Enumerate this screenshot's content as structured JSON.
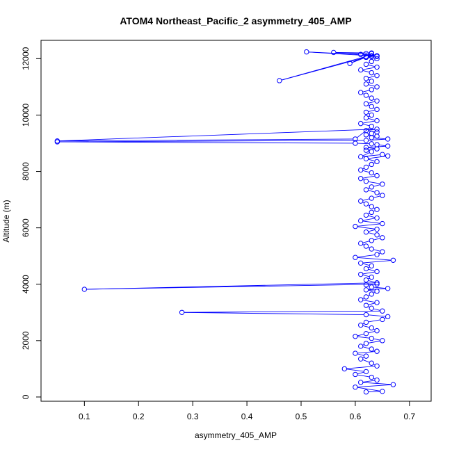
{
  "chart_data": {
    "type": "scatter",
    "title": "ATOM4 Northeast_Pacific_2 asymmetry_405_AMP",
    "xlabel": "asymmetry_405_AMP",
    "ylabel": "Altitude (m)",
    "xlim": [
      0.02,
      0.74
    ],
    "ylim": [
      -150,
      12650
    ],
    "xticks": [
      0.1,
      0.2,
      0.3,
      0.4,
      0.5,
      0.6,
      0.7
    ],
    "yticks": [
      0,
      2000,
      4000,
      6000,
      8000,
      10000,
      12000
    ],
    "grid": false,
    "marker": "open-circle",
    "line": true,
    "color": "#0000FF",
    "series": [
      {
        "x": [
          0.62,
          0.65,
          0.6,
          0.67,
          0.61,
          0.64,
          0.63,
          0.6,
          0.62,
          0.58,
          0.64,
          0.63,
          0.61,
          0.62,
          0.6,
          0.64,
          0.63,
          0.61,
          0.62,
          0.65,
          0.63,
          0.6,
          0.62,
          0.64,
          0.63,
          0.61,
          0.62,
          0.65,
          0.66,
          0.62,
          0.28,
          0.65,
          0.63,
          0.62,
          0.64,
          0.61,
          0.62,
          0.63,
          0.64,
          0.62,
          0.66,
          0.63,
          0.62,
          0.64,
          0.1,
          0.64,
          0.62,
          0.63,
          0.61,
          0.64,
          0.62,
          0.63,
          0.61,
          0.67,
          0.6,
          0.64,
          0.65,
          0.63,
          0.62,
          0.61,
          0.63,
          0.65,
          0.64,
          0.62,
          0.64,
          0.6,
          0.65,
          0.61,
          0.64,
          0.62,
          0.63,
          0.64,
          0.63,
          0.62,
          0.61,
          0.63,
          0.65,
          0.64,
          0.62,
          0.63,
          0.65,
          0.62,
          0.61,
          0.64,
          0.63,
          0.61,
          0.62,
          0.63,
          0.64,
          0.62,
          0.66,
          0.65,
          0.61,
          0.63,
          0.62,
          0.64,
          0.62,
          0.66,
          0.64,
          0.63,
          0.6,
          0.05,
          0.62,
          0.66,
          0.63,
          0.64,
          0.62,
          0.63,
          0.64,
          0.62,
          0.64,
          0.05,
          0.6,
          0.63,
          0.61,
          0.64,
          0.62,
          0.63,
          0.62,
          0.64,
          0.63,
          0.62,
          0.64,
          0.63,
          0.62,
          0.61,
          0.63,
          0.64,
          0.62,
          0.63,
          0.62,
          0.64,
          0.63,
          0.61,
          0.64,
          0.62,
          0.63,
          0.64,
          0.62,
          0.46,
          0.62,
          0.64,
          0.61,
          0.63,
          0.62,
          0.64,
          0.63,
          0.59,
          0.62,
          0.63,
          0.56,
          0.62,
          0.63,
          0.64,
          0.61,
          0.51,
          0.63
        ],
        "y": [
          180,
          200,
          350,
          440,
          520,
          600,
          700,
          800,
          900,
          1000,
          1100,
          1200,
          1350,
          1450,
          1550,
          1620,
          1700,
          1800,
          1900,
          2000,
          2080,
          2150,
          2250,
          2350,
          2450,
          2550,
          2650,
          2750,
          2850,
          2920,
          3000,
          3050,
          3150,
          3250,
          3350,
          3450,
          3550,
          3650,
          3750,
          3800,
          3850,
          3900,
          3980,
          4000,
          3820,
          4050,
          4150,
          4250,
          4350,
          4450,
          4550,
          4650,
          4750,
          4850,
          4950,
          5050,
          5150,
          5250,
          5350,
          5450,
          5550,
          5650,
          5750,
          5850,
          5950,
          6050,
          6150,
          6250,
          6350,
          6450,
          6550,
          6650,
          6750,
          6850,
          6950,
          7050,
          7150,
          7250,
          7350,
          7450,
          7550,
          7650,
          7750,
          7850,
          7950,
          8050,
          8150,
          8250,
          8350,
          8450,
          8550,
          8600,
          8520,
          8700,
          8750,
          8800,
          8850,
          8900,
          8950,
          8980,
          9000,
          9050,
          9100,
          9150,
          9200,
          9250,
          9300,
          9350,
          9400,
          9450,
          9500,
          9080,
          9150,
          9600,
          9700,
          9800,
          9900,
          10000,
          10100,
          10200,
          10300,
          10400,
          10500,
          10600,
          10700,
          10800,
          10900,
          11000,
          11100,
          11200,
          11300,
          11400,
          11500,
          11600,
          11700,
          11800,
          11900,
          12000,
          12050,
          11220,
          12080,
          12100,
          12150,
          12080,
          12050,
          12100,
          12180,
          11830,
          12050,
          12200,
          12220,
          12180,
          12100,
          12080,
          12150,
          12240,
          12100
        ]
      }
    ]
  }
}
